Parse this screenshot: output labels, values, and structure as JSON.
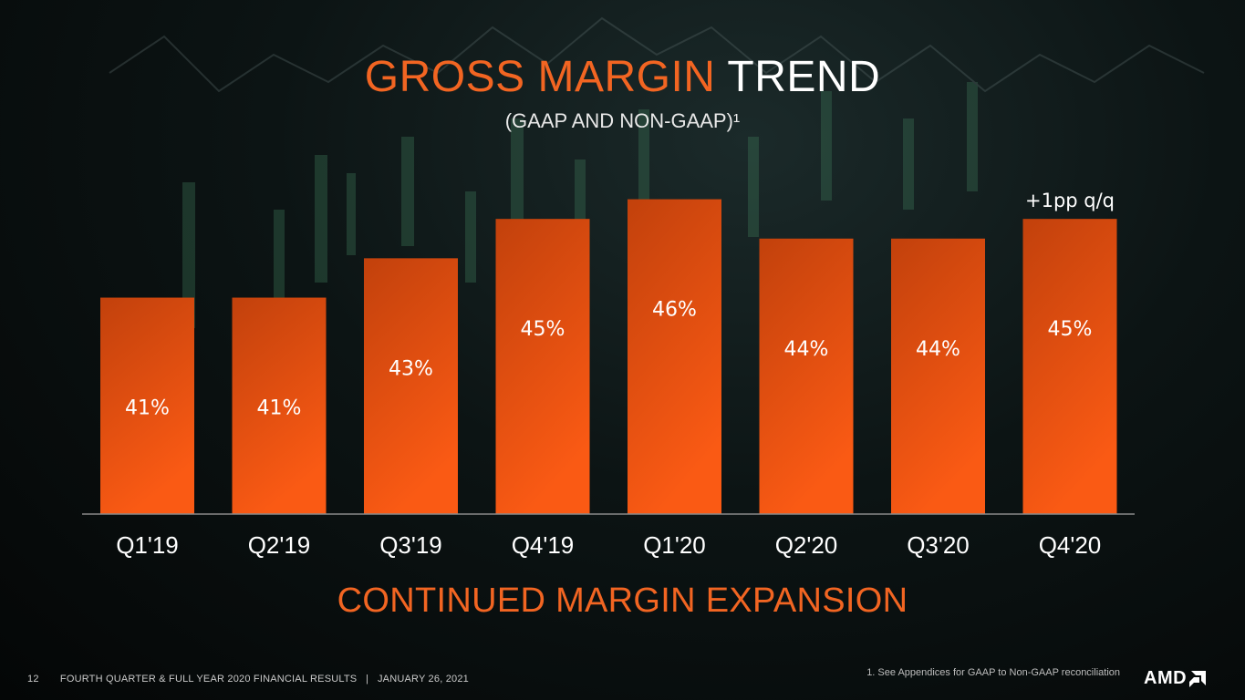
{
  "header": {
    "title_accent": "GROSS MARGIN",
    "title_rest": "TREND",
    "subtitle": "(GAAP AND NON-GAAP)¹"
  },
  "chart_data": {
    "type": "bar",
    "categories": [
      "Q1'19",
      "Q2'19",
      "Q3'19",
      "Q4'19",
      "Q1'20",
      "Q2'20",
      "Q3'20",
      "Q4'20"
    ],
    "values": [
      41,
      41,
      43,
      45,
      46,
      44,
      44,
      45
    ],
    "value_labels": [
      "41%",
      "41%",
      "43%",
      "45%",
      "46%",
      "44%",
      "44%",
      "45%"
    ],
    "annotation": {
      "category": "Q4'20",
      "text": "+1pp q/q"
    },
    "title": "GROSS MARGIN TREND",
    "subtitle": "(GAAP AND NON-GAAP)¹",
    "xlabel": "",
    "ylabel": "",
    "ylim": [
      30,
      47
    ],
    "grid": false,
    "bar_color_top": "#c2410c",
    "bar_color_bottom": "#fa5a14"
  },
  "tagline": "CONTINUED MARGIN EXPANSION",
  "footer": {
    "page_number": "12",
    "event": "FOURTH QUARTER & FULL YEAR 2020 FINANCIAL RESULTS",
    "separator": "|",
    "date": "JANUARY 26, 2021",
    "footnote": "1.    See Appendices for GAAP to Non-GAAP reconciliation"
  },
  "logo": {
    "text": "AMD"
  },
  "colors": {
    "accent": "#f26522",
    "text": "#ffffff"
  }
}
